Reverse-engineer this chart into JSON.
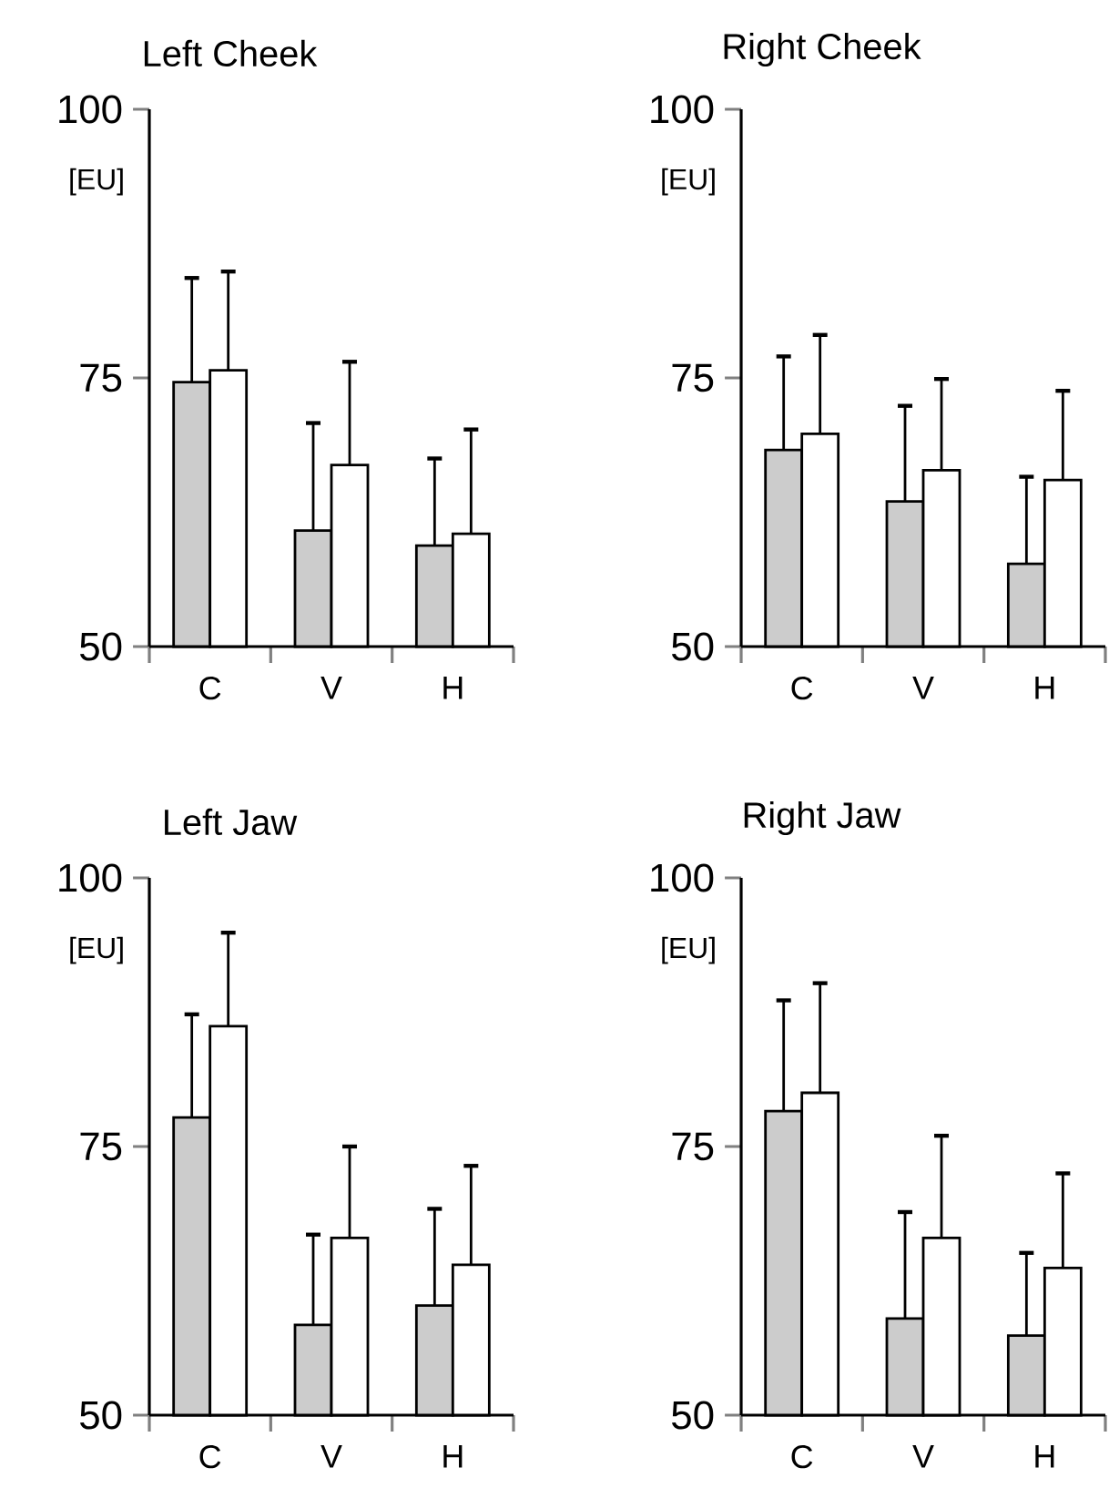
{
  "chart_data": [
    {
      "type": "bar",
      "title": "Left Cheek",
      "ylabel": "[EU]",
      "categories": [
        "C",
        "V",
        "H"
      ],
      "ylim": [
        50,
        100
      ],
      "yticks": [
        50,
        75,
        100
      ],
      "series": [
        {
          "color": "#cccccc",
          "values": [
            74.6,
            60.8,
            59.4
          ],
          "errors": [
            [
              74.6,
              84.3
            ],
            [
              60.8,
              70.8
            ],
            [
              59.4,
              67.5
            ]
          ]
        },
        {
          "color": "#ffffff",
          "values": [
            75.7,
            66.9,
            60.5
          ],
          "errors": [
            [
              75.7,
              84.9
            ],
            [
              66.9,
              76.5
            ],
            [
              60.5,
              70.2
            ]
          ]
        }
      ]
    },
    {
      "type": "bar",
      "title": "Right Cheek",
      "ylabel": "[EU]",
      "categories": [
        "C",
        "V",
        "H"
      ],
      "ylim": [
        50,
        100
      ],
      "yticks": [
        50,
        75,
        100
      ],
      "series": [
        {
          "color": "#cccccc",
          "values": [
            68.3,
            63.5,
            57.7
          ],
          "errors": [
            [
              68.3,
              77.0
            ],
            [
              63.5,
              72.4
            ],
            [
              57.7,
              65.8
            ]
          ]
        },
        {
          "color": "#ffffff",
          "values": [
            69.8,
            66.4,
            65.5
          ],
          "errors": [
            [
              69.8,
              79.0
            ],
            [
              66.4,
              74.9
            ],
            [
              65.5,
              73.8
            ]
          ]
        }
      ]
    },
    {
      "type": "bar",
      "title": "Left Jaw",
      "ylabel": "[EU]",
      "categories": [
        "C",
        "V",
        "H"
      ],
      "ylim": [
        50,
        100
      ],
      "yticks": [
        50,
        75,
        100
      ],
      "series": [
        {
          "color": "#cccccc",
          "values": [
            77.7,
            58.4,
            60.2
          ],
          "errors": [
            [
              77.7,
              87.3
            ],
            [
              58.4,
              66.8
            ],
            [
              60.2,
              69.2
            ]
          ]
        },
        {
          "color": "#ffffff",
          "values": [
            86.2,
            66.5,
            64.0
          ],
          "errors": [
            [
              86.2,
              94.9
            ],
            [
              66.5,
              75.0
            ],
            [
              64.0,
              73.2
            ]
          ]
        }
      ]
    },
    {
      "type": "bar",
      "title": "Right Jaw",
      "ylabel": "[EU]",
      "categories": [
        "C",
        "V",
        "H"
      ],
      "ylim": [
        50,
        100
      ],
      "yticks": [
        50,
        75,
        100
      ],
      "series": [
        {
          "color": "#cccccc",
          "values": [
            78.3,
            59.0,
            57.4
          ],
          "errors": [
            [
              78.3,
              88.6
            ],
            [
              59.0,
              68.9
            ],
            [
              57.4,
              65.1
            ]
          ]
        },
        {
          "color": "#ffffff",
          "values": [
            80.0,
            66.5,
            63.7
          ],
          "errors": [
            [
              80.0,
              90.2
            ],
            [
              66.5,
              76.0
            ],
            [
              63.7,
              72.5
            ]
          ]
        }
      ]
    }
  ]
}
